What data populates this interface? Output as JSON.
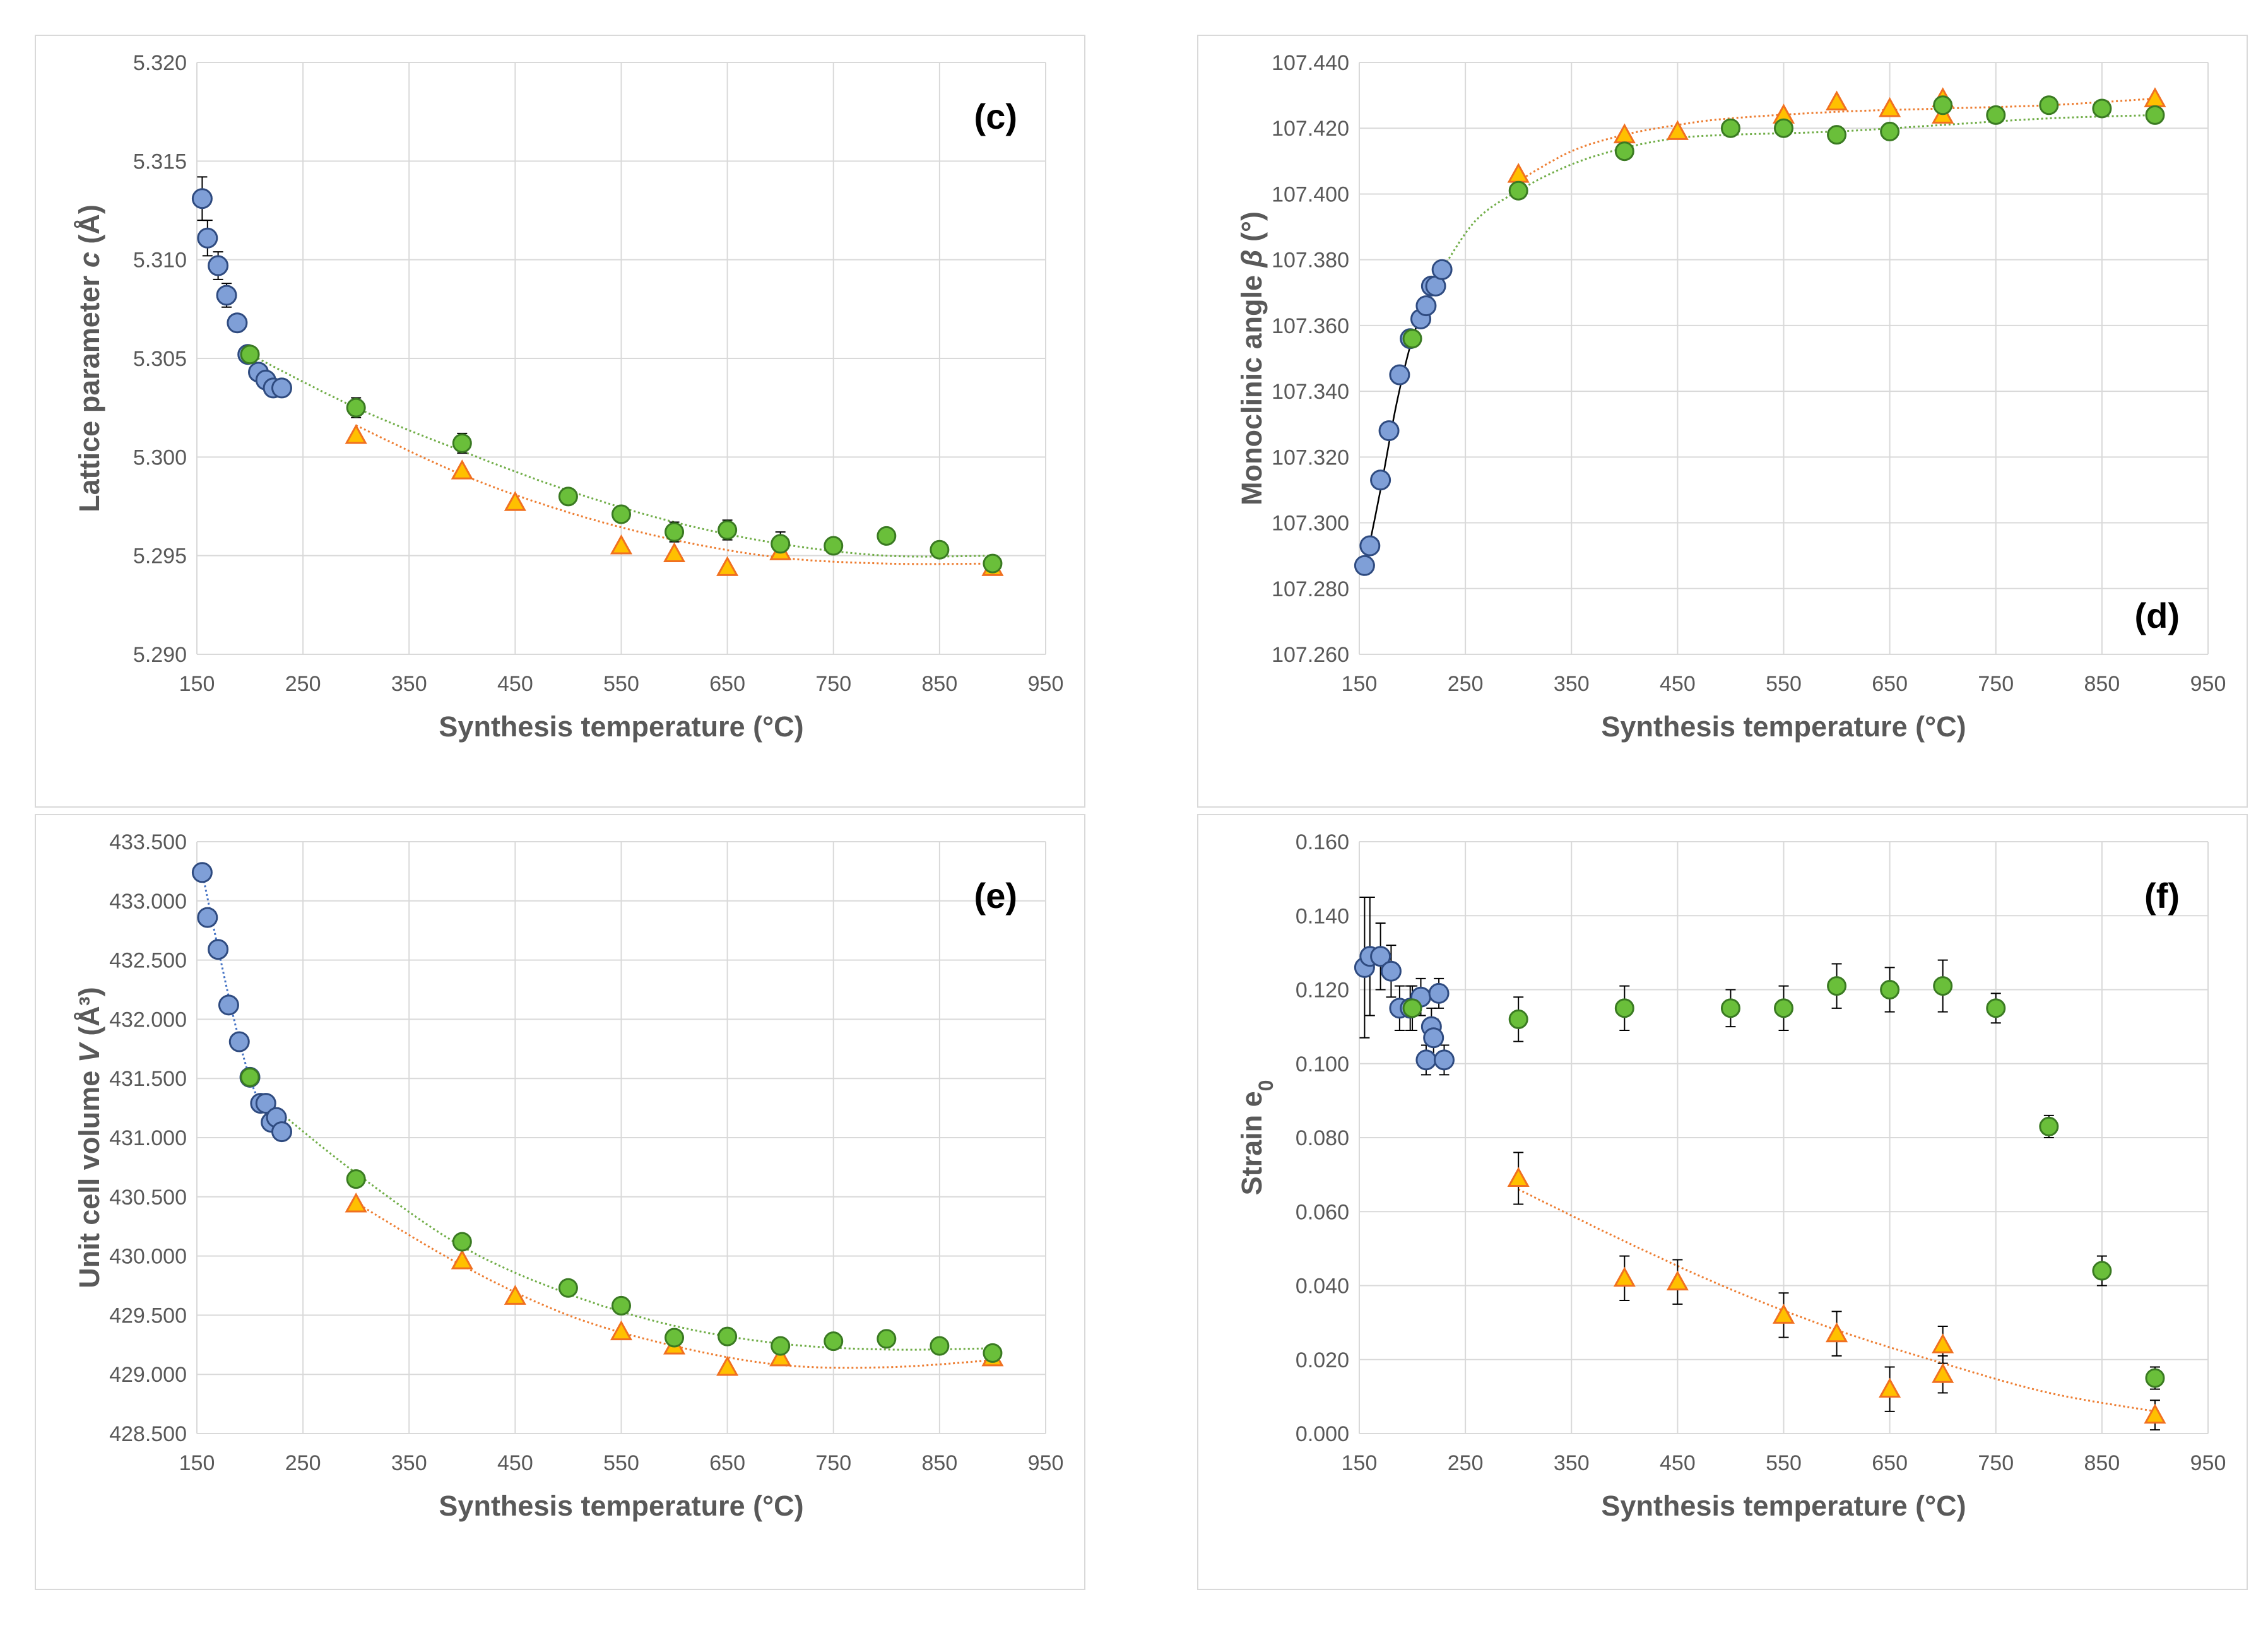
{
  "colors": {
    "blue_fill": "#7f9fd7",
    "blue_stroke": "#2f4b80",
    "green_fill": "#6abf3a",
    "green_stroke": "#3a7a22",
    "orange_fill": "#ffc000",
    "orange_stroke": "#f07020",
    "green_trend": "#70ad47",
    "orange_trend": "#ed7d31",
    "blue_trend": "#4472c4",
    "black_trend": "#000000",
    "grid": "#d9d9d9",
    "text": "#595959"
  },
  "chart_data": [
    {
      "id": "c",
      "type": "scatter",
      "panel_label": "(c)",
      "xlabel": "Synthesis temperature (°C)",
      "ylabel_main": "Lattice parameter ",
      "ylabel_italic": "c",
      "ylabel_unit": " (Å)",
      "xlim": [
        150,
        950
      ],
      "ylim": [
        5.29,
        5.32
      ],
      "xticks": [
        "150",
        "250",
        "350",
        "450",
        "550",
        "650",
        "750",
        "850",
        "950"
      ],
      "yticks": [
        "5.290",
        "5.295",
        "5.300",
        "5.305",
        "5.310",
        "5.315",
        "5.320"
      ],
      "series": [
        {
          "name": "blue",
          "marker": "circle",
          "x": [
            155,
            160,
            170,
            178,
            188,
            198,
            208,
            215,
            222,
            230
          ],
          "y": [
            5.3131,
            5.3111,
            5.3097,
            5.3082,
            5.3068,
            5.3052,
            5.3043,
            5.3039,
            5.3035,
            5.3035
          ],
          "err": [
            0.0011,
            0.0009,
            0.0007,
            0.0006,
            0.0004,
            0.0003,
            0.0003,
            0.0003,
            0.0003,
            0.0003
          ]
        },
        {
          "name": "green",
          "marker": "circle",
          "x": [
            200,
            300,
            400,
            500,
            550,
            600,
            650,
            700,
            750,
            800,
            850,
            900
          ],
          "y": [
            5.3052,
            5.3025,
            5.3007,
            5.298,
            5.2971,
            5.2962,
            5.2963,
            5.2956,
            5.2955,
            5.296,
            5.2953,
            5.2946
          ],
          "err": [
            0.0004,
            0.0005,
            0.0005,
            0.0004,
            0.0004,
            0.0005,
            0.0005,
            0.0006,
            0.0003,
            0.0002,
            0.0004,
            0.0003
          ]
        },
        {
          "name": "orange",
          "marker": "triangle",
          "x": [
            300,
            400,
            450,
            550,
            600,
            650,
            700,
            900
          ],
          "y": [
            5.3011,
            5.2993,
            5.2977,
            5.2955,
            5.2951,
            5.2944,
            5.2952,
            5.2944
          ],
          "err": []
        }
      ],
      "trendlines": [
        {
          "name": "green",
          "x": [
            200,
            300,
            400,
            500,
            600,
            700,
            800,
            900
          ],
          "y": [
            5.3052,
            5.3025,
            5.3003,
            5.2983,
            5.2967,
            5.2956,
            5.295,
            5.295
          ]
        },
        {
          "name": "orange",
          "x": [
            300,
            400,
            500,
            600,
            700,
            800,
            900
          ],
          "y": [
            5.3016,
            5.2991,
            5.2972,
            5.2958,
            5.2949,
            5.2946,
            5.2946
          ]
        }
      ]
    },
    {
      "id": "d",
      "type": "scatter",
      "panel_label": "(d)",
      "xlabel": "Synthesis temperature (°C)",
      "ylabel_main": "Monoclinic angle ",
      "ylabel_italic": "β",
      "ylabel_unit": " (°)",
      "xlim": [
        150,
        950
      ],
      "ylim": [
        107.26,
        107.44
      ],
      "xticks": [
        "150",
        "250",
        "350",
        "450",
        "550",
        "650",
        "750",
        "850",
        "950"
      ],
      "yticks": [
        "107.260",
        "107.280",
        "107.300",
        "107.320",
        "107.340",
        "107.360",
        "107.380",
        "107.400",
        "107.420",
        "107.440"
      ],
      "series": [
        {
          "name": "blue",
          "marker": "circle",
          "x": [
            155,
            160,
            170,
            178,
            188,
            198,
            208,
            213,
            218,
            222,
            228
          ],
          "y": [
            107.287,
            107.293,
            107.313,
            107.328,
            107.345,
            107.356,
            107.362,
            107.366,
            107.372,
            107.372,
            107.377
          ],
          "err": []
        },
        {
          "name": "green",
          "marker": "circle",
          "x": [
            200,
            300,
            400,
            500,
            550,
            600,
            650,
            700,
            750,
            800,
            850,
            900
          ],
          "y": [
            107.356,
            107.401,
            107.413,
            107.42,
            107.42,
            107.418,
            107.419,
            107.427,
            107.424,
            107.427,
            107.426,
            107.424
          ],
          "err": []
        },
        {
          "name": "orange",
          "marker": "triangle",
          "x": [
            300,
            400,
            450,
            550,
            600,
            650,
            700,
            700,
            900
          ],
          "y": [
            107.406,
            107.418,
            107.419,
            107.424,
            107.428,
            107.426,
            107.429,
            107.424,
            107.429
          ],
          "err": []
        }
      ],
      "trendlines": [
        {
          "name": "black",
          "x": [
            155,
            170,
            185,
            200,
            215,
            228
          ],
          "y": [
            107.286,
            107.31,
            107.336,
            107.356,
            107.368,
            107.377
          ]
        },
        {
          "name": "green",
          "x": [
            228,
            260,
            300,
            350,
            400,
            450,
            500,
            600,
            700,
            800,
            900
          ],
          "y": [
            107.377,
            107.392,
            107.401,
            107.409,
            107.414,
            107.417,
            107.418,
            107.419,
            107.421,
            107.423,
            107.424
          ]
        },
        {
          "name": "orange",
          "x": [
            300,
            350,
            400,
            450,
            500,
            600,
            700,
            800,
            900
          ],
          "y": [
            107.404,
            107.413,
            107.418,
            107.421,
            107.423,
            107.425,
            107.426,
            107.427,
            107.429
          ]
        }
      ]
    },
    {
      "id": "e",
      "type": "scatter",
      "panel_label": "(e)",
      "xlabel": "Synthesis temperature (°C)",
      "ylabel_main": "Unit cell volume ",
      "ylabel_italic": "V",
      "ylabel_unit": " (Å³)",
      "xlim": [
        150,
        950
      ],
      "ylim": [
        428.5,
        433.5
      ],
      "xticks": [
        "150",
        "250",
        "350",
        "450",
        "550",
        "650",
        "750",
        "850",
        "950"
      ],
      "yticks": [
        "428.500",
        "429.000",
        "429.500",
        "430.000",
        "430.500",
        "431.000",
        "431.500",
        "432.000",
        "432.500",
        "433.000",
        "433.500"
      ],
      "series": [
        {
          "name": "blue",
          "marker": "circle",
          "x": [
            155,
            160,
            170,
            180,
            190,
            200,
            210,
            215,
            220,
            225,
            230
          ],
          "y": [
            433.24,
            432.86,
            432.59,
            432.12,
            431.81,
            431.51,
            431.29,
            431.29,
            431.13,
            431.17,
            431.05
          ],
          "err": []
        },
        {
          "name": "green",
          "marker": "circle",
          "x": [
            200,
            300,
            400,
            500,
            550,
            600,
            650,
            700,
            750,
            800,
            850,
            900
          ],
          "y": [
            431.51,
            430.65,
            430.12,
            429.73,
            429.58,
            429.31,
            429.32,
            429.24,
            429.28,
            429.3,
            429.24,
            429.18
          ],
          "err": []
        },
        {
          "name": "orange",
          "marker": "triangle",
          "x": [
            300,
            400,
            450,
            550,
            600,
            650,
            700,
            900
          ],
          "y": [
            430.44,
            429.96,
            429.66,
            429.36,
            429.24,
            429.06,
            429.14,
            429.14
          ],
          "err": []
        }
      ],
      "trendlines": [
        {
          "name": "blue",
          "x": [
            155,
            170,
            185,
            200,
            215,
            230
          ],
          "y": [
            433.24,
            432.6,
            432.0,
            431.5,
            431.2,
            431.05
          ]
        },
        {
          "name": "green",
          "x": [
            230,
            300,
            400,
            500,
            600,
            700,
            800,
            900
          ],
          "y": [
            431.2,
            430.7,
            430.08,
            429.68,
            429.41,
            429.26,
            429.21,
            429.22
          ]
        },
        {
          "name": "orange",
          "x": [
            300,
            400,
            500,
            600,
            700,
            800,
            900
          ],
          "y": [
            430.45,
            429.92,
            429.5,
            429.24,
            429.08,
            429.06,
            429.12
          ]
        }
      ]
    },
    {
      "id": "f",
      "type": "scatter",
      "panel_label": "(f)",
      "xlabel": "Synthesis temperature (°C)",
      "ylabel_main": "Strain e",
      "ylabel_italic": "",
      "ylabel_unit": "",
      "ylabel_sub": "0",
      "xlim": [
        150,
        950
      ],
      "ylim": [
        0.0,
        0.16
      ],
      "xticks": [
        "150",
        "250",
        "350",
        "450",
        "550",
        "650",
        "750",
        "850",
        "950"
      ],
      "yticks": [
        "0.000",
        "0.020",
        "0.040",
        "0.060",
        "0.080",
        "0.100",
        "0.120",
        "0.140",
        "0.160"
      ],
      "series": [
        {
          "name": "blue",
          "marker": "circle",
          "x": [
            155,
            160,
            170,
            180,
            188,
            198,
            208,
            213,
            218,
            220,
            225,
            230
          ],
          "y": [
            0.126,
            0.129,
            0.129,
            0.125,
            0.115,
            0.115,
            0.118,
            0.101,
            0.11,
            0.107,
            0.119,
            0.101
          ],
          "err": [
            0.019,
            0.016,
            0.009,
            0.007,
            0.006,
            0.006,
            0.005,
            0.004,
            0.005,
            0.005,
            0.004,
            0.004
          ]
        },
        {
          "name": "green",
          "marker": "circle",
          "x": [
            200,
            300,
            400,
            500,
            550,
            600,
            650,
            700,
            750,
            800,
            850,
            900
          ],
          "y": [
            0.115,
            0.112,
            0.115,
            0.115,
            0.115,
            0.121,
            0.12,
            0.121,
            0.115,
            0.083,
            0.044,
            0.015
          ],
          "err": [
            0.006,
            0.006,
            0.006,
            0.005,
            0.006,
            0.006,
            0.006,
            0.007,
            0.004,
            0.003,
            0.004,
            0.003
          ]
        },
        {
          "name": "orange",
          "marker": "triangle",
          "x": [
            300,
            400,
            450,
            550,
            600,
            650,
            700,
            700,
            900
          ],
          "y": [
            0.069,
            0.042,
            0.041,
            0.032,
            0.027,
            0.012,
            0.024,
            0.016,
            0.005
          ],
          "err": [
            0.007,
            0.006,
            0.006,
            0.006,
            0.006,
            0.006,
            0.005,
            0.005,
            0.004
          ]
        }
      ],
      "trendlines": [
        {
          "name": "orange",
          "x": [
            300,
            400,
            500,
            600,
            700,
            800,
            900
          ],
          "y": [
            0.066,
            0.052,
            0.039,
            0.028,
            0.019,
            0.011,
            0.006
          ]
        }
      ]
    }
  ]
}
